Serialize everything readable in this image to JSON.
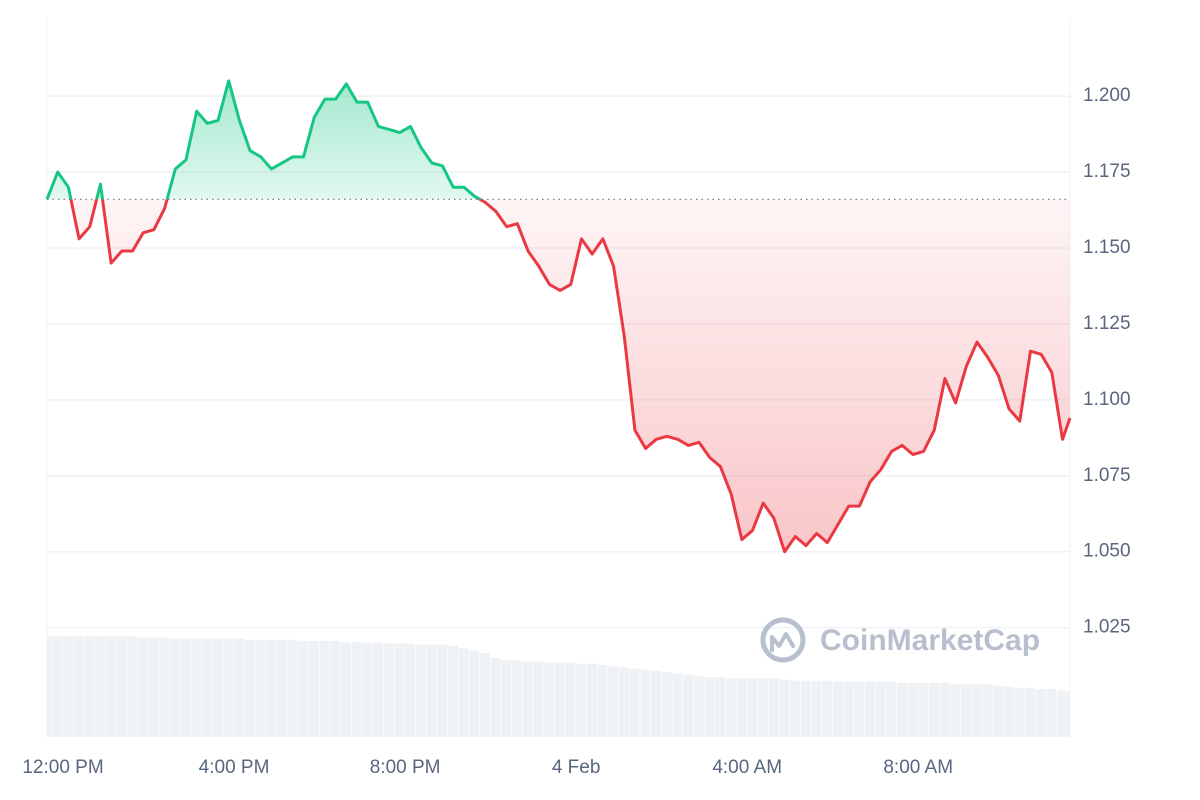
{
  "chart_data": {
    "type": "line",
    "watermark": "CoinMarketCap",
    "x": [
      -0.375,
      -0.125,
      0.125,
      0.375,
      0.625,
      0.875,
      1.125,
      1.375,
      1.625,
      1.875,
      2.125,
      2.375,
      2.625,
      2.875,
      3.125,
      3.375,
      3.625,
      3.875,
      4.125,
      4.375,
      4.625,
      4.875,
      5.125,
      5.375,
      5.625,
      5.875,
      6.125,
      6.375,
      6.625,
      6.875,
      7.125,
      7.375,
      7.625,
      7.875,
      8.125,
      8.375,
      8.625,
      8.875,
      9.125,
      9.375,
      9.625,
      9.875,
      10.125,
      10.375,
      10.625,
      10.875,
      11.125,
      11.375,
      11.625,
      11.875,
      12.125,
      12.375,
      12.625,
      12.875,
      13.125,
      13.375,
      13.625,
      13.875,
      14.125,
      14.375,
      14.625,
      14.875,
      15.125,
      15.375,
      15.625,
      15.875,
      16.125,
      16.375,
      16.625,
      16.875,
      17.125,
      17.375,
      17.625,
      17.875,
      18.125,
      18.375,
      18.625,
      18.875,
      19.125,
      19.375,
      19.625,
      19.875,
      20.125,
      20.375,
      20.625,
      20.875,
      21.125,
      21.375,
      21.625,
      21.875,
      22.125,
      22.375,
      22.625,
      22.875,
      23.125,
      23.375,
      23.55
    ],
    "values": [
      1.166,
      1.175,
      1.17,
      1.153,
      1.157,
      1.171,
      1.145,
      1.149,
      1.149,
      1.155,
      1.156,
      1.163,
      1.176,
      1.179,
      1.195,
      1.191,
      1.192,
      1.205,
      1.192,
      1.182,
      1.18,
      1.176,
      1.178,
      1.18,
      1.18,
      1.193,
      1.199,
      1.199,
      1.204,
      1.198,
      1.198,
      1.19,
      1.189,
      1.188,
      1.19,
      1.183,
      1.178,
      1.177,
      1.17,
      1.17,
      1.167,
      1.165,
      1.162,
      1.157,
      1.158,
      1.149,
      1.144,
      1.138,
      1.136,
      1.138,
      1.153,
      1.148,
      1.153,
      1.144,
      1.121,
      1.09,
      1.084,
      1.087,
      1.088,
      1.087,
      1.085,
      1.086,
      1.081,
      1.078,
      1.069,
      1.054,
      1.057,
      1.066,
      1.061,
      1.05,
      1.055,
      1.052,
      1.056,
      1.053,
      1.059,
      1.065,
      1.065,
      1.073,
      1.077,
      1.083,
      1.085,
      1.082,
      1.083,
      1.09,
      1.107,
      1.099,
      1.111,
      1.119,
      1.114,
      1.108,
      1.097,
      1.093,
      1.116,
      1.115,
      1.109,
      1.087,
      1.094
    ],
    "volume": [
      84,
      84,
      84,
      84,
      84,
      84,
      84,
      84,
      84,
      83,
      83,
      83,
      82,
      82,
      82,
      82,
      82,
      82,
      82,
      81,
      81,
      81,
      81,
      81,
      80,
      80,
      80,
      80,
      79,
      79,
      79,
      79,
      78,
      78,
      78,
      77,
      77,
      77,
      76,
      74,
      72,
      70,
      66,
      64,
      64,
      63,
      63,
      62,
      62,
      62,
      61,
      61,
      60,
      59,
      58,
      57,
      56,
      55,
      54,
      53,
      52,
      51,
      50,
      50,
      49,
      49,
      49,
      49,
      49,
      48,
      47,
      47,
      47,
      47,
      46,
      46,
      46,
      46,
      46,
      46,
      45,
      45,
      45,
      45,
      45,
      44,
      44,
      44,
      44,
      43,
      42,
      41,
      41,
      40,
      40,
      39,
      38
    ],
    "volume_lim": [
      0,
      100
    ],
    "baseline": 1.166,
    "up_color": "#16c784",
    "down_color": "#ea3943",
    "volume_color": "#eff2f5",
    "xlim": [
      -0.375,
      23.55
    ],
    "ylim": [
      0.989,
      1.2257
    ],
    "xticks": [
      {
        "value": 0,
        "label": "12:00 PM"
      },
      {
        "value": 4,
        "label": "4:00 PM"
      },
      {
        "value": 8,
        "label": "8:00 PM"
      },
      {
        "value": 12,
        "label": "4 Feb"
      },
      {
        "value": 16,
        "label": "4:00 AM"
      },
      {
        "value": 20,
        "label": "8:00 AM"
      }
    ],
    "yticks": [
      1.025,
      {
        "value": 1.05,
        "label": "1.050"
      },
      1.075,
      {
        "value": 1.1,
        "label": "1.100"
      },
      1.125,
      {
        "value": 1.15,
        "label": "1.150"
      },
      1.175,
      {
        "value": 1.2,
        "label": "1.200"
      }
    ],
    "grid": true
  }
}
